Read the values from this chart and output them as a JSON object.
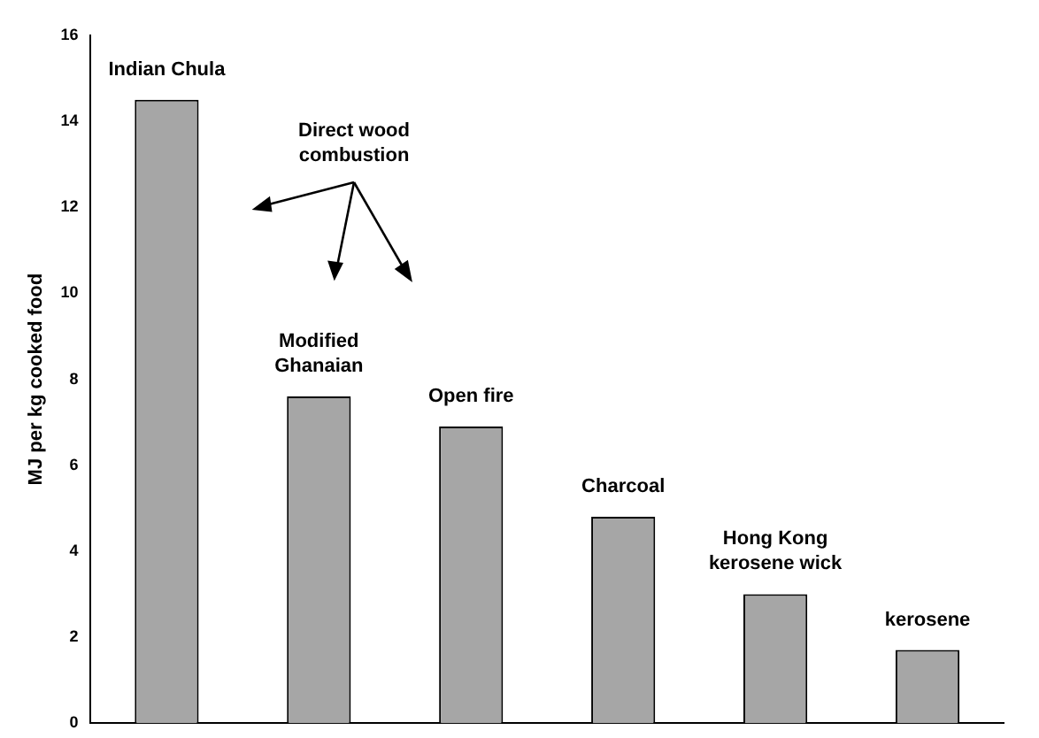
{
  "chart_data": {
    "type": "bar",
    "ylabel": "MJ per kg cooked food",
    "categories": [
      "Indian Chula",
      "Modified Ghanaian",
      "Open fire",
      "Charcoal",
      "Hong Kong kerosene wick",
      "kerosene"
    ],
    "values": [
      14.5,
      7.6,
      6.9,
      4.8,
      3.0,
      1.7
    ],
    "color": "#a6a6a6",
    "ylim": [
      0,
      16
    ],
    "yticks": [
      0,
      2,
      4,
      6,
      8,
      10,
      12,
      14,
      16
    ],
    "grid": false,
    "annotations": [
      "Direct wood combustion"
    ]
  }
}
